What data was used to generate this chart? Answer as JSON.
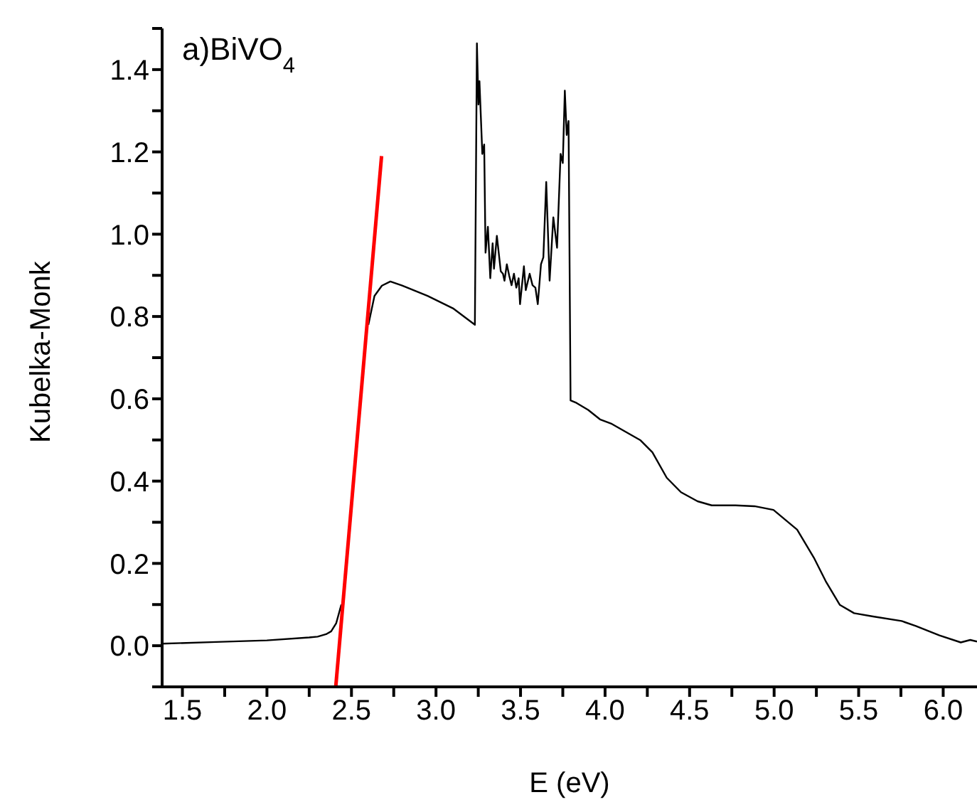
{
  "chart_data": {
    "type": "line",
    "title": "a)BiVO$_{4}$",
    "xlabel": "E (eV)",
    "ylabel": "Kubelka-Monk",
    "xlim": [
      1.38,
      6.2
    ],
    "ylim": [
      -0.1,
      1.5
    ],
    "xticks": [
      1.5,
      {
        "value": 1.75,
        "label": null
      },
      {
        "value": 2,
        "label": "2.0"
      },
      {
        "value": 2.25,
        "label": null
      },
      2.5,
      {
        "value": 2.75,
        "label": null
      },
      {
        "value": 3,
        "label": "3.0"
      },
      {
        "value": 3.25,
        "label": null
      },
      3.5,
      {
        "value": 3.75,
        "label": null
      },
      {
        "value": 4,
        "label": "4.0"
      },
      {
        "value": 4.25,
        "label": null
      },
      4.5,
      {
        "value": 4.75,
        "label": null
      },
      {
        "value": 5,
        "label": "5.0"
      },
      {
        "value": 5.25,
        "label": null
      },
      5.5,
      {
        "value": 5.75,
        "label": null
      },
      {
        "value": 6,
        "label": "6.0"
      }
    ],
    "yticks": [
      {
        "value": -0.1,
        "label": null
      },
      {
        "value": 0,
        "label": "0.0"
      },
      {
        "value": 0.1,
        "label": null
      },
      {
        "value": 0.2,
        "label": "0.2"
      },
      {
        "value": 0.3,
        "label": null
      },
      {
        "value": 0.4,
        "label": "0.4"
      },
      {
        "value": 0.5,
        "label": null
      },
      {
        "value": 0.6,
        "label": "0.6"
      },
      {
        "value": 0.7,
        "label": null
      },
      {
        "value": 0.8,
        "label": "0.8"
      },
      {
        "value": 0.9,
        "label": null
      },
      {
        "value": 1.0,
        "label": "1.0"
      },
      {
        "value": 1.1,
        "label": null
      },
      {
        "value": 1.2,
        "label": "1.2"
      },
      {
        "value": 1.3,
        "label": null
      },
      {
        "value": 1.4,
        "label": "1.4"
      },
      {
        "value": 1.5,
        "label": null
      }
    ],
    "grid": false,
    "legend": false,
    "marker": "none",
    "line_style": "solid",
    "series": [
      {
        "color": "#000000",
        "x": [
          1.38,
          1.7,
          2.0,
          2.25,
          2.3,
          2.35,
          2.38,
          2.41,
          2.44,
          2.47,
          2.5,
          2.55,
          2.6,
          2.636,
          2.68,
          2.73,
          2.8,
          2.95,
          3.1,
          3.23,
          3.242,
          3.251,
          3.257,
          3.274,
          3.285,
          3.293,
          3.307,
          3.321,
          3.335,
          3.343,
          3.36,
          3.383,
          3.396,
          3.405,
          3.419,
          3.433,
          3.447,
          3.461,
          3.475,
          3.489,
          3.497,
          3.52,
          3.531,
          3.554,
          3.571,
          3.588,
          3.602,
          3.621,
          3.635,
          3.652,
          3.672,
          3.694,
          3.716,
          3.737,
          3.75,
          3.762,
          3.773,
          3.784,
          3.796,
          3.831,
          3.9,
          3.97,
          4.04,
          4.21,
          4.28,
          4.365,
          4.449,
          4.547,
          4.631,
          4.772,
          4.884,
          4.996,
          5.136,
          5.235,
          5.305,
          5.389,
          5.473,
          5.585,
          5.754,
          5.838,
          5.978,
          6.104,
          6.16,
          6.2
        ],
        "values": [
          0.005,
          0.009,
          0.013,
          0.02,
          0.022,
          0.028,
          0.035,
          0.055,
          0.1,
          null,
          null,
          null,
          0.78,
          0.85,
          0.875,
          0.885,
          0.875,
          0.85,
          0.82,
          0.78,
          1.464,
          1.315,
          1.372,
          1.195,
          1.218,
          0.955,
          1.018,
          0.893,
          0.978,
          0.916,
          0.996,
          0.91,
          0.904,
          0.887,
          0.927,
          0.899,
          0.876,
          0.904,
          0.87,
          0.893,
          0.83,
          0.922,
          0.864,
          0.904,
          0.876,
          0.87,
          0.83,
          0.927,
          0.944,
          1.127,
          0.887,
          1.041,
          0.967,
          1.195,
          1.173,
          1.349,
          1.241,
          1.275,
          0.596,
          0.59,
          0.573,
          0.55,
          0.539,
          0.499,
          0.47,
          0.408,
          0.373,
          0.351,
          0.341,
          0.341,
          0.339,
          0.33,
          0.282,
          0.214,
          0.157,
          0.099,
          0.079,
          0.071,
          0.06,
          0.048,
          0.025,
          0.008,
          0.014,
          0.01
        ]
      },
      {
        "type": "line",
        "color": "#ff0000",
        "x": [
          2.407,
          2.678
        ],
        "values": [
          -0.1,
          1.19
        ]
      }
    ]
  }
}
